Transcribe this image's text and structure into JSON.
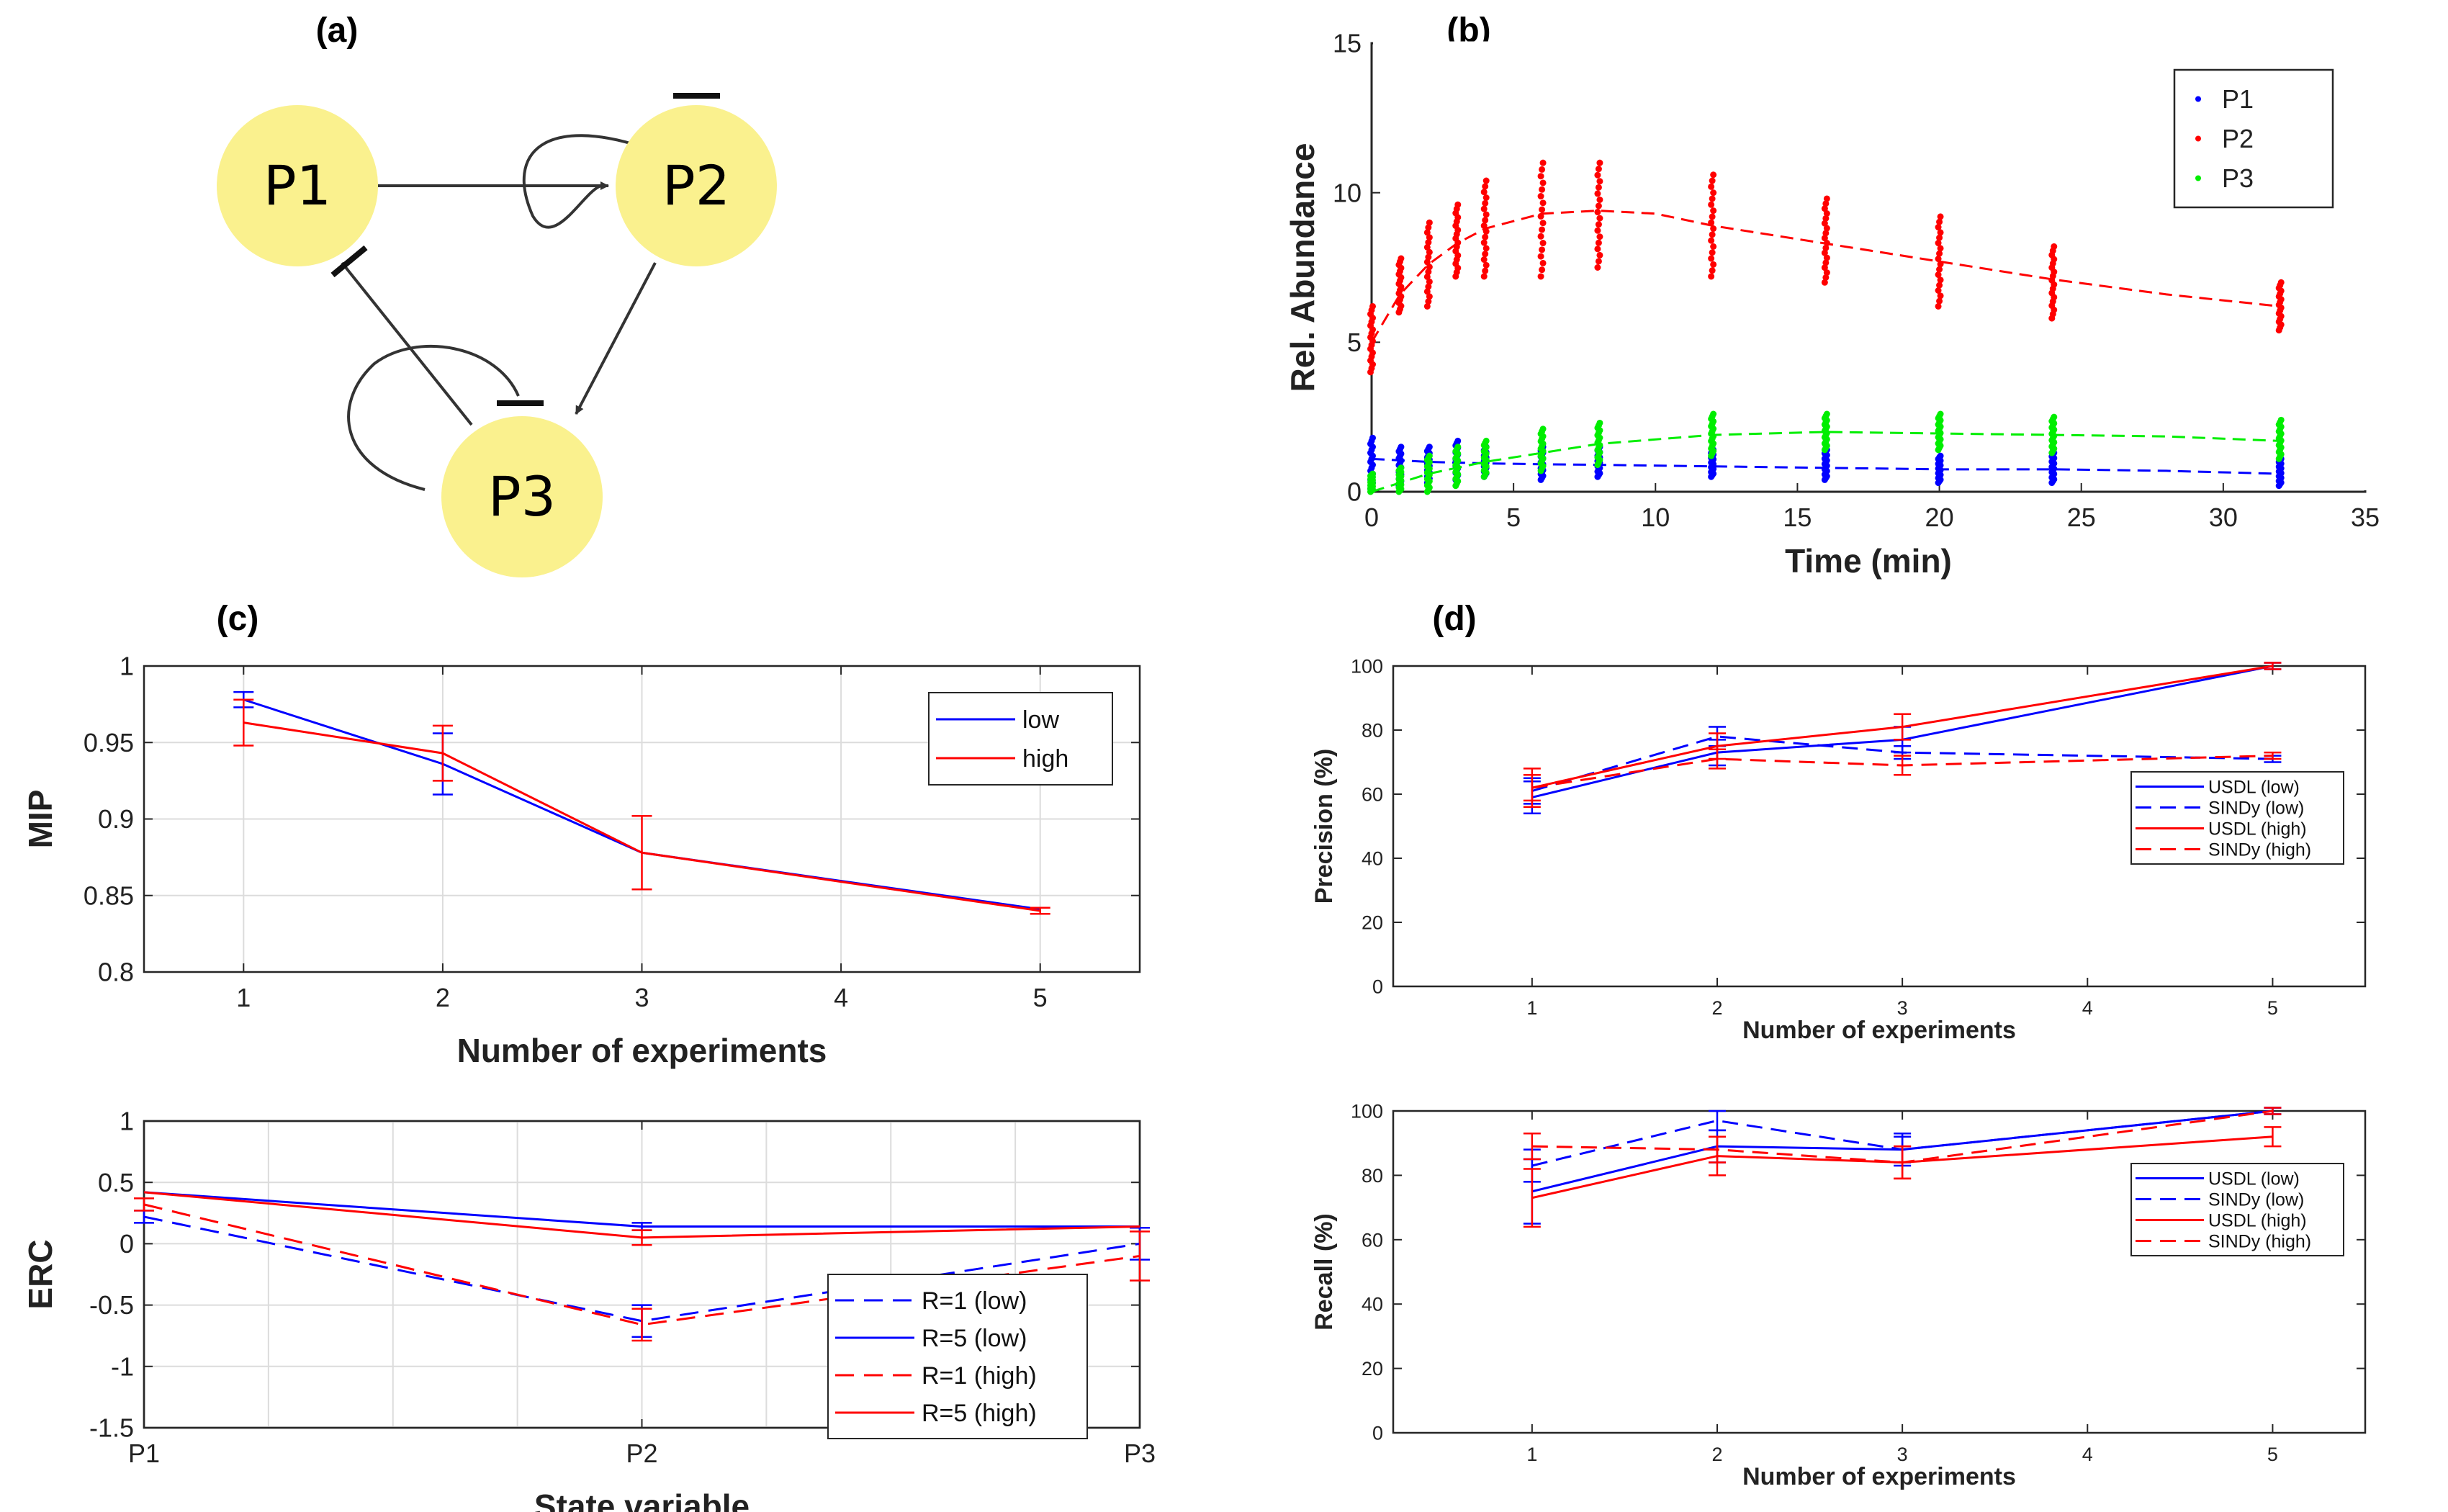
{
  "panels": {
    "a": {
      "label": "(a)"
    },
    "b": {
      "label": "(b)"
    },
    "c": {
      "label": "(c)"
    },
    "d": {
      "label": "(d)"
    }
  },
  "network": {
    "nodes": [
      {
        "id": "P1",
        "label": "P1"
      },
      {
        "id": "P2",
        "label": "P2"
      },
      {
        "id": "P3",
        "label": "P3"
      }
    ],
    "node_fill": "#FAF18E",
    "edges": [
      {
        "from": "P1",
        "to": "P2",
        "type": "activation"
      },
      {
        "from": "P2",
        "to": "P3",
        "type": "activation"
      },
      {
        "from": "P3",
        "to": "P1",
        "type": "inhibition"
      },
      {
        "from": "P2",
        "to": "P2",
        "type": "inhibition"
      },
      {
        "from": "P3",
        "to": "P3",
        "type": "inhibition"
      }
    ]
  },
  "chart_data": [
    {
      "id": "b",
      "type": "scatter",
      "xlabel": "Time (min)",
      "ylabel": "Rel. Abundance",
      "xlim": [
        0,
        35
      ],
      "ylim": [
        0,
        15
      ],
      "xticks": [
        0,
        5,
        10,
        15,
        20,
        25,
        30,
        35
      ],
      "yticks": [
        0,
        5,
        10,
        15
      ],
      "legend_position": "top-right",
      "sample_times": [
        0,
        1,
        2,
        3,
        4,
        6,
        8,
        12,
        16,
        20,
        24,
        32
      ],
      "series": [
        {
          "name": "P1",
          "color": "#0000FF",
          "low": [
            0.1,
            0.2,
            0.3,
            0.4,
            0.5,
            0.4,
            0.5,
            0.5,
            0.4,
            0.3,
            0.3,
            0.2
          ],
          "high": [
            1.8,
            1.5,
            1.5,
            1.7,
            1.5,
            1.5,
            1.5,
            1.4,
            1.4,
            1.2,
            1.3,
            1.1
          ],
          "fit_x": [
            0,
            2,
            4,
            6,
            8,
            12,
            16,
            20,
            24,
            28,
            32
          ],
          "fit_y": [
            1.1,
            1.0,
            0.95,
            0.92,
            0.9,
            0.85,
            0.8,
            0.75,
            0.75,
            0.7,
            0.6
          ]
        },
        {
          "name": "P2",
          "color": "#FF0000",
          "low": [
            4.0,
            6.0,
            6.2,
            7.2,
            7.2,
            7.2,
            7.5,
            7.2,
            7.0,
            6.2,
            5.8,
            5.4
          ],
          "high": [
            6.2,
            7.8,
            9.0,
            9.6,
            10.4,
            11.0,
            11.0,
            10.6,
            9.8,
            9.2,
            8.2,
            7.0
          ],
          "fit_x": [
            0,
            1,
            2,
            3,
            4,
            6,
            8,
            10,
            12,
            16,
            20,
            24,
            28,
            32
          ],
          "fit_y": [
            5.0,
            6.6,
            7.6,
            8.3,
            8.8,
            9.3,
            9.4,
            9.3,
            8.9,
            8.3,
            7.7,
            7.1,
            6.6,
            6.2
          ]
        },
        {
          "name": "P3",
          "color": "#00EE00",
          "low": [
            0.0,
            0.0,
            0.0,
            0.2,
            0.5,
            0.7,
            0.9,
            1.2,
            1.4,
            1.4,
            1.3,
            1.1
          ],
          "high": [
            0.6,
            0.8,
            1.2,
            1.5,
            1.7,
            2.1,
            2.3,
            2.6,
            2.6,
            2.6,
            2.5,
            2.4
          ],
          "fit_x": [
            0,
            2,
            4,
            6,
            8,
            12,
            16,
            20,
            24,
            28,
            32
          ],
          "fit_y": [
            0.0,
            0.6,
            1.0,
            1.3,
            1.6,
            1.9,
            2.0,
            1.95,
            1.9,
            1.85,
            1.7
          ]
        }
      ]
    },
    {
      "id": "c-top",
      "type": "line",
      "xlabel": "Number of experiments",
      "ylabel": "MIP",
      "xlim": [
        0.5,
        5.5
      ],
      "ylim": [
        0.8,
        1
      ],
      "xticks": [
        1,
        2,
        3,
        4,
        5
      ],
      "yticks": [
        0.8,
        0.85,
        0.9,
        0.95,
        1
      ],
      "grid": true,
      "legend_position": "top-right",
      "x": [
        1,
        2,
        3,
        5
      ],
      "series": [
        {
          "name": "low",
          "color": "#0000FF",
          "dash": false,
          "values": [
            0.978,
            0.936,
            0.878,
            0.841
          ],
          "errors": [
            0.005,
            0.02,
            0.0,
            0.0
          ]
        },
        {
          "name": "high",
          "color": "#FF0000",
          "dash": false,
          "values": [
            0.963,
            0.943,
            0.878,
            0.84
          ],
          "errors": [
            0.015,
            0.018,
            0.024,
            0.002
          ]
        }
      ]
    },
    {
      "id": "c-bottom",
      "type": "line",
      "xlabel": "State variable",
      "ylabel": "ERC",
      "categories": [
        "P1",
        "P2",
        "P3"
      ],
      "ylim": [
        -1.5,
        1
      ],
      "yticks": [
        -1.5,
        -1,
        -0.5,
        0,
        0.5,
        1
      ],
      "grid": true,
      "legend_position": "bottom-right",
      "series": [
        {
          "name": "R=1 (low)",
          "color": "#0000FF",
          "dash": true,
          "values": [
            0.22,
            -0.63,
            0.0
          ],
          "errors": [
            0.05,
            0.13,
            0.13
          ]
        },
        {
          "name": "R=5 (low)",
          "color": "#0000FF",
          "dash": false,
          "values": [
            0.42,
            0.14,
            0.14
          ],
          "errors": [
            0.0,
            0.03,
            0.0
          ]
        },
        {
          "name": "R=1 (high)",
          "color": "#FF0000",
          "dash": true,
          "values": [
            0.32,
            -0.66,
            -0.1
          ],
          "errors": [
            0.05,
            0.13,
            0.2
          ]
        },
        {
          "name": "R=5 (high)",
          "color": "#FF0000",
          "dash": false,
          "values": [
            0.42,
            0.05,
            0.14
          ],
          "errors": [
            0.0,
            0.06,
            0.0
          ]
        }
      ]
    },
    {
      "id": "d-top",
      "type": "line",
      "xlabel": "Number of experiments",
      "ylabel": "Precision (%)",
      "xlim": [
        0.25,
        5.5
      ],
      "ylim": [
        0,
        100
      ],
      "xticks": [
        1,
        2,
        3,
        4,
        5
      ],
      "yticks": [
        0,
        20,
        40,
        60,
        80,
        100
      ],
      "legend_position": "right",
      "x": [
        1,
        2,
        3,
        5
      ],
      "series": [
        {
          "name": "USDL (low)",
          "color": "#0000FF",
          "dash": false,
          "values": [
            59,
            73,
            77,
            100
          ],
          "errors": [
            5,
            4,
            4,
            1
          ]
        },
        {
          "name": "SINDy (low)",
          "color": "#0000FF",
          "dash": true,
          "values": [
            61,
            78,
            73,
            71
          ],
          "errors": [
            4,
            3,
            2,
            1
          ]
        },
        {
          "name": "USDL (high)",
          "color": "#FF0000",
          "dash": false,
          "values": [
            62,
            75,
            81,
            100
          ],
          "errors": [
            6,
            4,
            4,
            1
          ]
        },
        {
          "name": "SINDy (high)",
          "color": "#FF0000",
          "dash": true,
          "values": [
            62,
            71,
            69,
            72
          ],
          "errors": [
            4,
            3,
            3,
            1
          ]
        }
      ]
    },
    {
      "id": "d-bottom",
      "type": "line",
      "xlabel": "Number of experiments",
      "ylabel": "Recall (%)",
      "xlim": [
        0.25,
        5.5
      ],
      "ylim": [
        0,
        100
      ],
      "xticks": [
        1,
        2,
        3,
        4,
        5
      ],
      "yticks": [
        0,
        20,
        40,
        60,
        80,
        100
      ],
      "legend_position": "right",
      "x": [
        1,
        2,
        3,
        5
      ],
      "series": [
        {
          "name": "USDL (low)",
          "color": "#0000FF",
          "dash": false,
          "values": [
            75,
            89,
            88,
            100
          ],
          "errors": [
            10,
            5,
            5,
            1
          ]
        },
        {
          "name": "SINDy (low)",
          "color": "#0000FF",
          "dash": true,
          "values": [
            83,
            97,
            88,
            100
          ],
          "errors": [
            5,
            3,
            4,
            1
          ]
        },
        {
          "name": "USDL (high)",
          "color": "#FF0000",
          "dash": false,
          "values": [
            73,
            86,
            84,
            92
          ],
          "errors": [
            9,
            6,
            5,
            3
          ]
        },
        {
          "name": "SINDy (high)",
          "color": "#FF0000",
          "dash": true,
          "values": [
            89,
            88,
            84,
            100
          ],
          "errors": [
            4,
            4,
            5,
            1
          ]
        }
      ]
    }
  ]
}
